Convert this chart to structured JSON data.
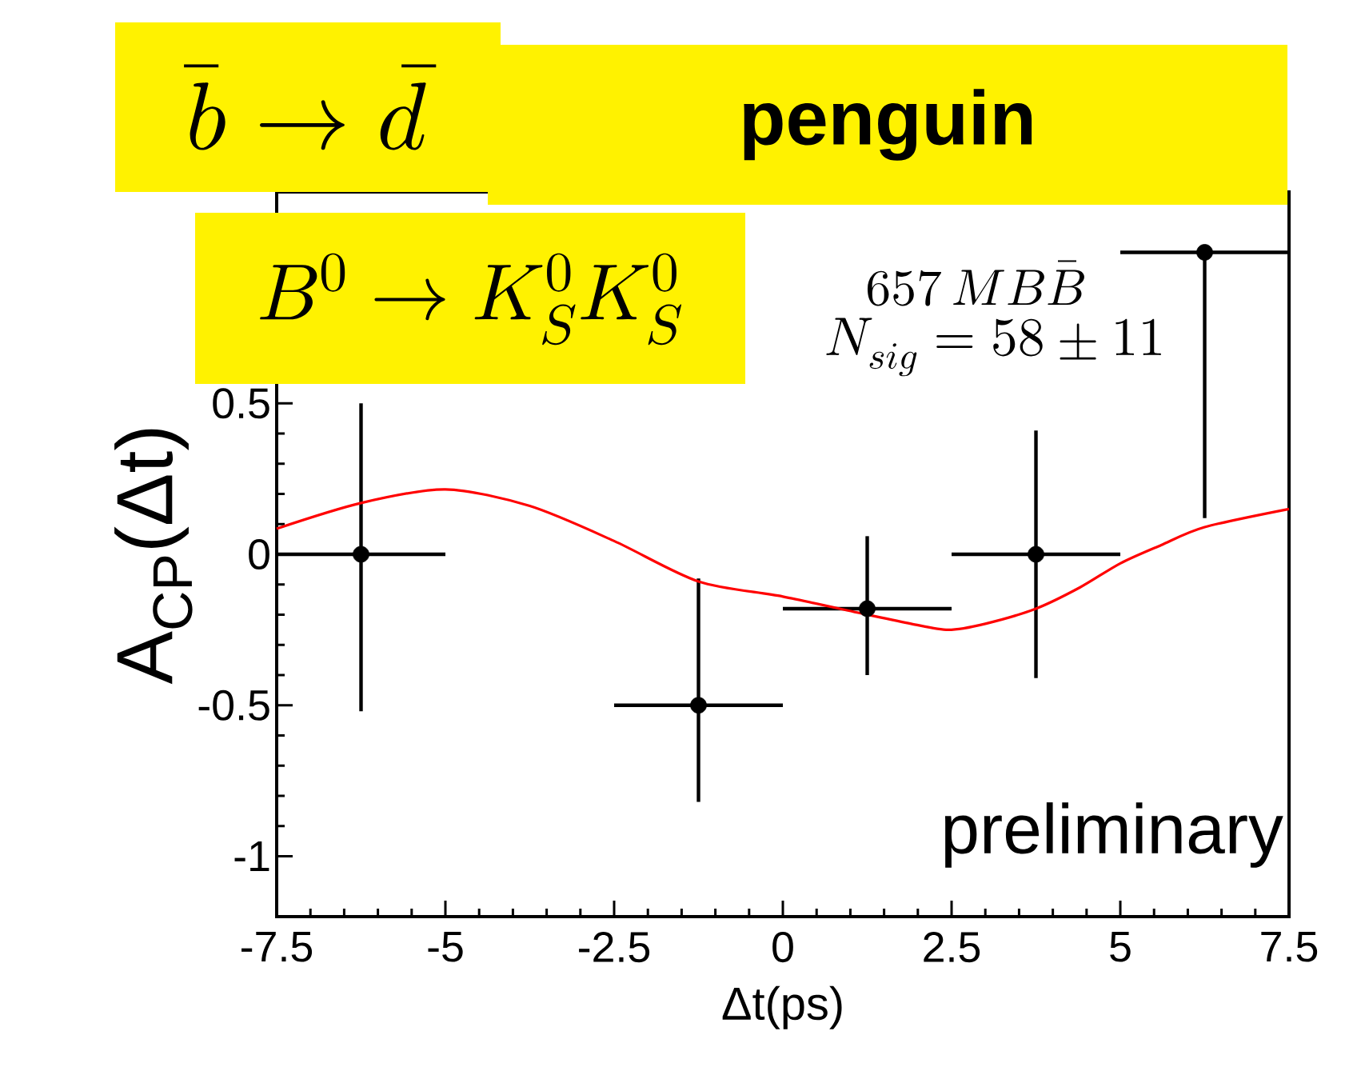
{
  "chart_data": {
    "type": "scatter",
    "title": "\\bar{b} \\rightarrow \\bar{d}",
    "subtitle": "penguin",
    "xlabel": "Δt(ps)",
    "ylabel": "A$_{CP}$(Δt)",
    "annotations": [
      "B^0 \\rightarrow K^0_S K^0_S",
      "657\\,MB\\bar{B}",
      "N_{sig} = 58 \\pm 11",
      "preliminary"
    ],
    "x": [
      -6.25,
      -1.25,
      1.25,
      3.75,
      6.25
    ],
    "xlim": [
      -7.5,
      7.5
    ],
    "xticks": [
      -7.5,
      -5,
      -2.5,
      0,
      2.5,
      5,
      7.5
    ],
    "ylim": [
      -1.2,
      1.2
    ],
    "yticks": [
      -1,
      -0.5,
      0,
      0.5
    ],
    "series": [
      {
        "color": "#000000",
        "marker": "circle",
        "values": [
          0,
          -0.5,
          -0.18,
          0,
          1.0
        ],
        "errors": [
          [
            -0.52,
            0.5
          ],
          [
            -0.82,
            -0.08
          ],
          [
            -0.4,
            0.06
          ],
          [
            -0.41,
            0.41
          ],
          [
            0.12,
            1.0
          ]
        ],
        "xerrors": [
          1.25,
          1.25,
          1.25,
          1.25,
          1.25
        ]
      },
      {
        "type": "line",
        "color": "#ff0000",
        "marker": "none",
        "x": [
          -7.5,
          -6.25,
          -5,
          -3.75,
          -2.5,
          -1.25,
          0,
          1.25,
          1.9,
          2.45,
          3,
          3.75,
          4.4,
          5,
          5.6,
          6.25,
          7.5
        ],
        "values": [
          0.085,
          0.17,
          0.215,
          0.16,
          0.044,
          -0.09,
          -0.14,
          -0.2,
          -0.23,
          -0.25,
          -0.23,
          -0.18,
          -0.11,
          -0.03,
          0.03,
          0.09,
          0.15
        ]
      }
    ]
  }
}
